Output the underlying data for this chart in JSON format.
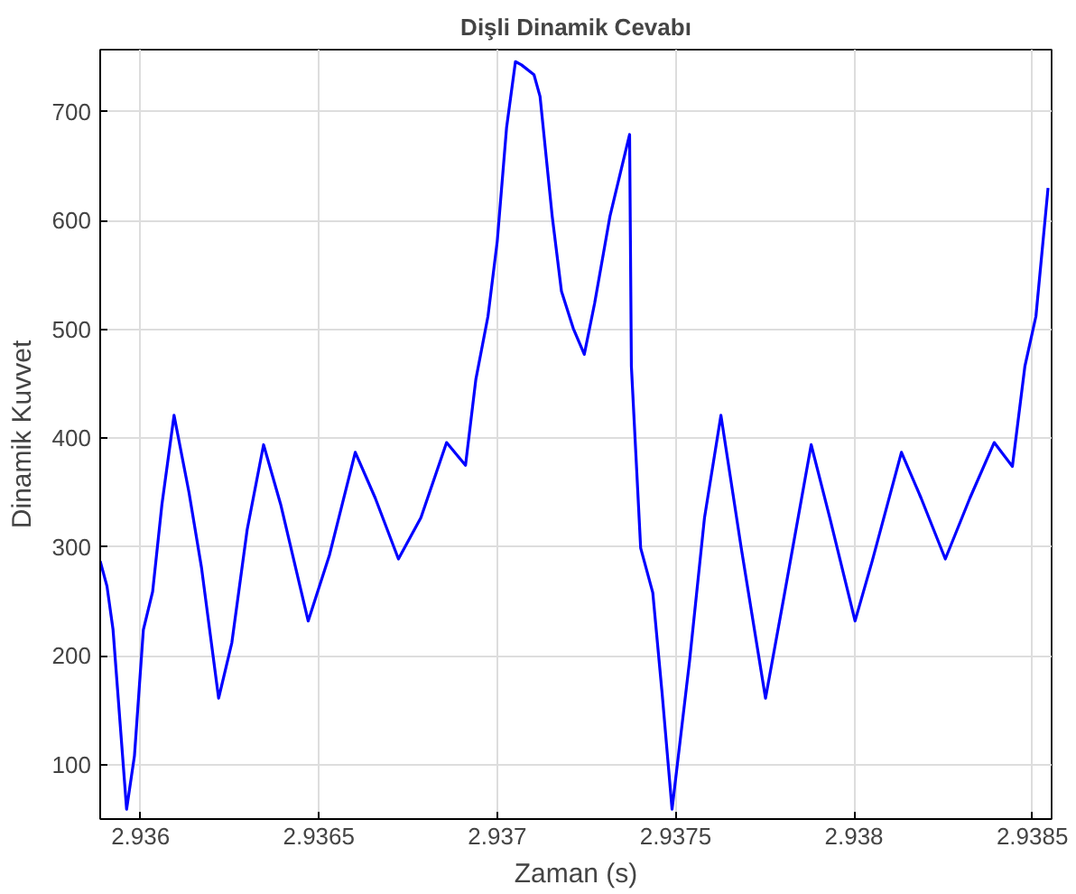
{
  "chart_data": {
    "type": "line",
    "title": "Dişli Dinamik Cevabı",
    "xlabel": "Zaman (s)",
    "ylabel": "Dinamik Kuvvet",
    "xlim": [
      2.935887,
      2.938554
    ],
    "ylim": [
      50,
      757
    ],
    "xticks": [
      2.936,
      2.9365,
      2.937,
      2.9375,
      2.938,
      2.9385
    ],
    "yticks": [
      100,
      200,
      300,
      400,
      500,
      600,
      700
    ],
    "grid": true,
    "marker": "none",
    "line_style": "solid",
    "series": [
      {
        "color": "#0000ff",
        "x": [
          2.935887,
          2.935906,
          2.935923,
          2.935961,
          2.935983,
          2.936008,
          2.936034,
          2.93606,
          2.936094,
          2.936136,
          2.936171,
          2.936219,
          2.936256,
          2.936299,
          2.936345,
          2.936393,
          2.93647,
          2.93653,
          2.936602,
          2.936658,
          2.936723,
          2.936786,
          2.936858,
          2.936911,
          2.93694,
          2.936974,
          2.937,
          2.937026,
          2.937051,
          2.937068,
          2.937103,
          2.93712,
          2.937154,
          2.93718,
          2.937213,
          2.937244,
          2.937273,
          2.937316,
          2.937371,
          2.937376,
          2.937402,
          2.937436,
          2.937462,
          2.93749,
          2.937539,
          2.937581,
          2.937627,
          2.937684,
          2.937752,
          2.937803,
          2.93788,
          2.937932,
          2.938003,
          2.938051,
          2.938133,
          2.938188,
          2.938256,
          2.938325,
          2.938393,
          2.938444,
          2.938479,
          2.93851,
          2.938544
        ],
        "values": [
          287,
          264,
          224,
          59,
          108,
          224,
          259,
          339,
          421,
          350,
          281,
          161,
          212,
          316,
          394,
          339,
          232,
          293,
          387,
          345,
          289,
          327,
          396,
          375,
          454,
          512,
          581,
          685,
          746,
          743,
          734,
          714,
          604,
          535,
          501,
          477,
          524,
          604,
          679,
          466,
          299,
          258,
          166,
          59,
          195,
          327,
          421,
          299,
          161,
          253,
          394,
          327,
          232,
          287,
          387,
          345,
          289,
          345,
          396,
          374,
          466,
          512,
          630
        ]
      }
    ]
  }
}
